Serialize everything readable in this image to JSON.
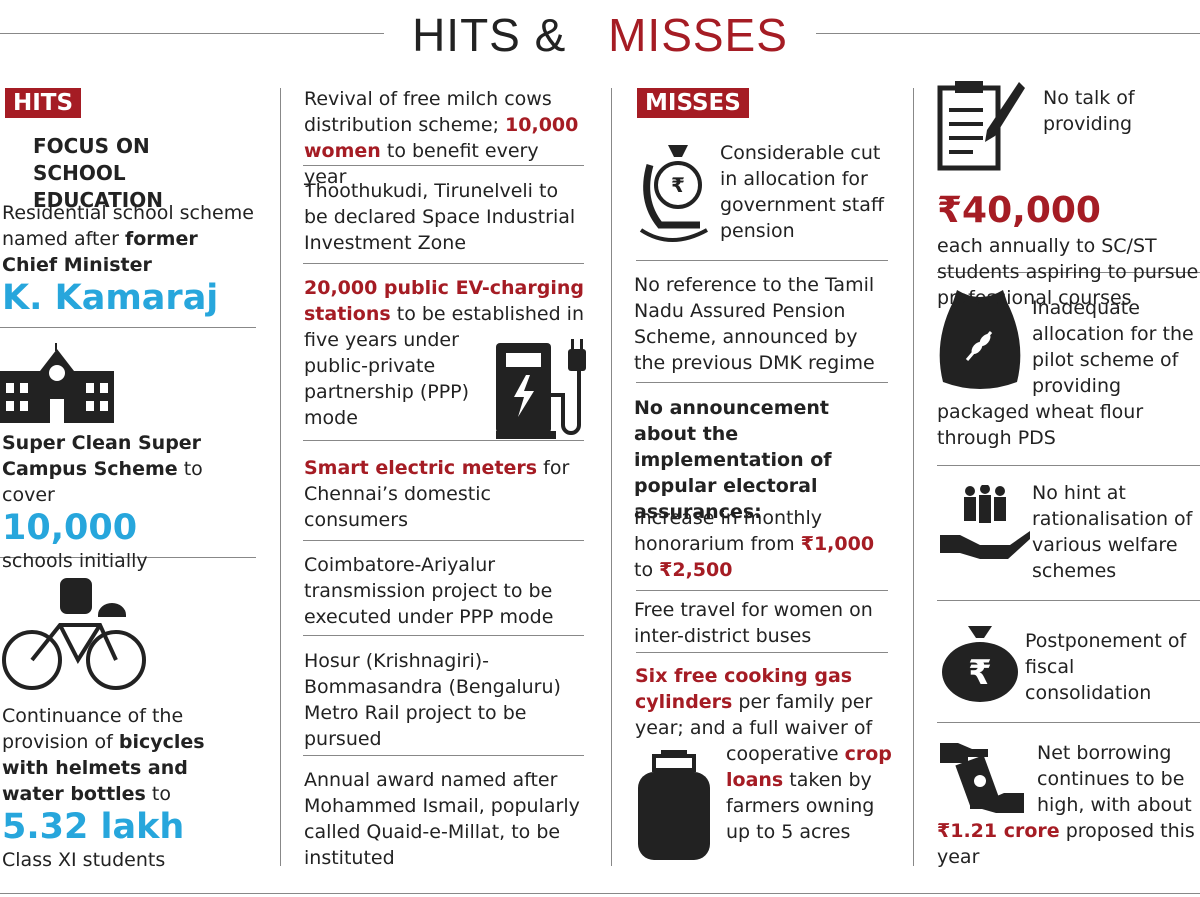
{
  "header": {
    "title": [
      "HITS &",
      "MISSES"
    ]
  },
  "columns": [
    {
      "label": "HITS",
      "heading": "FOCUS ON SCHOOL EDUCATION",
      "items": [
        {
          "runs": [
            {
              "text": "Residential school scheme named after ",
              "style": "plain"
            },
            {
              "text": "former Chief Minister",
              "style": "bold"
            },
            {
              "text": "K. Kamaraj",
              "style": "blue-big"
            }
          ]
        },
        {
          "runs": [
            {
              "text": "Super Clean Super Campus Scheme",
              "style": "bold"
            },
            {
              "text": " to cover",
              "style": "plain"
            },
            {
              "text": "10,000",
              "style": "blue-big"
            },
            {
              "text": "schools initially",
              "style": "plain"
            }
          ]
        },
        {
          "runs": [
            {
              "text": "Continuance of the provision of ",
              "style": "plain"
            },
            {
              "text": "bicycles with helmets and water bottles",
              "style": "bold"
            },
            {
              "text": " to",
              "style": "plain"
            },
            {
              "text": "5.32 lakh",
              "style": "blue-big"
            },
            {
              "text": "Class XI students",
              "style": "plain"
            }
          ]
        }
      ]
    },
    {
      "items": [
        {
          "runs": [
            {
              "text": "Revival of free milch cows distribution scheme; ",
              "style": "plain"
            },
            {
              "text": "10,000 women",
              "style": "red"
            },
            {
              "text": " to benefit every year",
              "style": "plain"
            }
          ]
        },
        {
          "runs": [
            {
              "text": "Thoothukudi, Tirunelveli to be declared  Space Industrial Investment Zone",
              "style": "plain"
            }
          ]
        },
        {
          "runs": [
            {
              "text": "20,000 public EV-charging stations",
              "style": "red"
            },
            {
              "text": " to be established in five years under public-private partnership (PPP) mode",
              "style": "plain"
            }
          ]
        },
        {
          "runs": [
            {
              "text": "Smart electric meters",
              "style": "red"
            },
            {
              "text": " for Chennai’s domestic consumers",
              "style": "plain"
            }
          ]
        },
        {
          "runs": [
            {
              "text": "Coimbatore-Ariyalur transmission project to be executed under PPP mode",
              "style": "plain"
            }
          ]
        },
        {
          "runs": [
            {
              "text": "Hosur (Krishnagiri)-Bommasandra (Bengaluru) Metro Rail project to be pursued",
              "style": "plain"
            }
          ]
        },
        {
          "runs": [
            {
              "text": "Annual award named after Mohammed Ismail, popularly called Quaid-e-Millat, to be instituted",
              "style": "plain"
            }
          ]
        }
      ]
    },
    {
      "label": "MISSES",
      "items": [
        {
          "runs": [
            {
              "text": "Considerable cut in allocation for government staff pension",
              "style": "plain"
            }
          ]
        },
        {
          "runs": [
            {
              "text": "No reference to the Tamil Nadu Assured Pension Scheme, announced by the previous DMK regime",
              "style": "plain"
            }
          ]
        },
        {
          "runs": [
            {
              "text": "No announcement about the implementation of popular electoral assurances:",
              "style": "bold"
            }
          ]
        },
        {
          "runs": [
            {
              "text": "Increase in monthly honorarium from ",
              "style": "plain"
            },
            {
              "text": "₹1,000",
              "style": "red"
            },
            {
              "text": " to ",
              "style": "plain"
            },
            {
              "text": "₹2,500",
              "style": "red"
            }
          ]
        },
        {
          "runs": [
            {
              "text": "Free travel for women on inter-district buses",
              "style": "plain"
            }
          ]
        },
        {
          "runs": [
            {
              "text": "Six free cooking gas cylinders",
              "style": "red"
            },
            {
              "text": " per family per year; and a full waiver of cooperative ",
              "style": "plain"
            },
            {
              "text": "crop loans",
              "style": "red"
            },
            {
              "text": " taken by farmers owning up to 5 acres",
              "style": "plain"
            }
          ]
        }
      ]
    },
    {
      "items": [
        {
          "runs": [
            {
              "text": "No talk of providing",
              "style": "plain"
            },
            {
              "text": "₹40,000",
              "style": "red-big"
            },
            {
              "text": "each annually to SC/ST students aspiring to pursue professional courses",
              "style": "plain"
            }
          ]
        },
        {
          "runs": [
            {
              "text": "Inadequate allocation for the pilot scheme of providing packaged wheat flour through PDS",
              "style": "plain"
            }
          ]
        },
        {
          "runs": [
            {
              "text": "No hint at rationalisation of various welfare schemes",
              "style": "plain"
            }
          ]
        },
        {
          "runs": [
            {
              "text": "Postponement of fiscal consolidation",
              "style": "plain"
            }
          ]
        },
        {
          "runs": [
            {
              "text": "Net borrowing continues to be high, with about ",
              "style": "plain"
            },
            {
              "text": "₹1.21 crore",
              "style": "red"
            },
            {
              "text": " proposed this year",
              "style": "plain"
            }
          ]
        }
      ]
    }
  ]
}
